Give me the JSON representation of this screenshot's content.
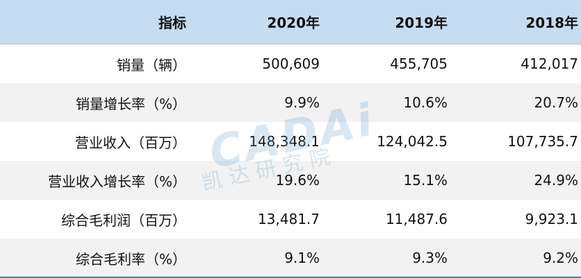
{
  "table": {
    "header": [
      "指标",
      "2020年",
      "2019年",
      "2018年"
    ],
    "rows": [
      [
        "销量（辆）",
        "500,609",
        "455,705",
        "412,017"
      ],
      [
        "销量增长率（%）",
        "9.9%",
        "10.6%",
        "20.7%"
      ],
      [
        "营业收入（百万）",
        "148,348.1",
        "124,042.5",
        "107,735.7"
      ],
      [
        "营业收入增长率（%）",
        "19.6%",
        "15.1%",
        "24.9%"
      ],
      [
        "综合毛利润（百万）",
        "13,481.7",
        "11,487.6",
        "9,923.1"
      ],
      [
        "综合毛利率（%）",
        "9.1%",
        "9.3%",
        "9.2%"
      ]
    ]
  },
  "watermark": {
    "logo": "CADAi",
    "name": "凯 达 研 究 院"
  }
}
